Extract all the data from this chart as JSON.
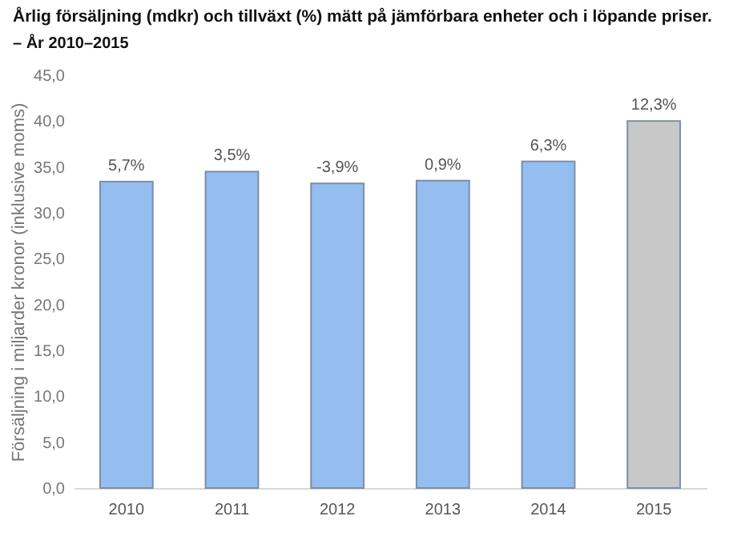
{
  "chart_data": {
    "type": "bar",
    "title": "Årlig försäljning (mdkr) och tillväxt (%) mätt på jämförbara enheter och i löpande priser.",
    "subtitle": "– År 2010–2015",
    "ylabel": "Försäljning i miljarder kronor (inklusive moms)",
    "categories": [
      "2010",
      "2011",
      "2012",
      "2013",
      "2014",
      "2015"
    ],
    "values": [
      33.4,
      34.5,
      33.2,
      33.5,
      35.6,
      40.0
    ],
    "colors": [
      "#94bdf0",
      "#94bdf0",
      "#94bdf0",
      "#94bdf0",
      "#94bdf0",
      "#c8c8c8"
    ],
    "annotations": [
      {
        "text": "5,7%",
        "x": "2010",
        "y": 33.4
      },
      {
        "text": "3,5%",
        "x": "2011",
        "y": 34.5
      },
      {
        "text": "-3,9%",
        "x": "2012",
        "y": 33.2
      },
      {
        "text": "0,9%",
        "x": "2013",
        "y": 33.5
      },
      {
        "text": "6,3%",
        "x": "2014",
        "y": 35.6
      },
      {
        "text": "12,3%",
        "x": "2015",
        "y": 40.0
      }
    ],
    "ylim": [
      0,
      45
    ],
    "yticks": [
      {
        "value": 0,
        "label": "0,0"
      },
      {
        "value": 5,
        "label": "5,0"
      },
      {
        "value": 10,
        "label": "10,0"
      },
      {
        "value": 15,
        "label": "15,0"
      },
      {
        "value": 20,
        "label": "20,0"
      },
      {
        "value": 25,
        "label": "25,0"
      },
      {
        "value": 30,
        "label": "30,0"
      },
      {
        "value": 35,
        "label": "35,0"
      },
      {
        "value": 40,
        "label": "40,0"
      },
      {
        "value": 45,
        "label": "45,0"
      }
    ],
    "grid": false
  }
}
